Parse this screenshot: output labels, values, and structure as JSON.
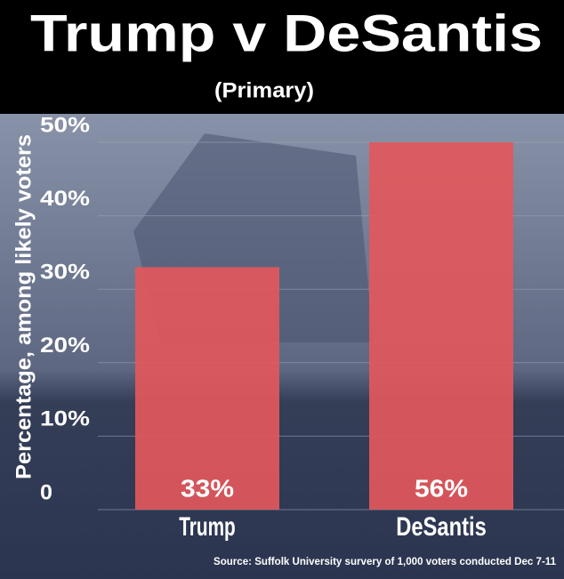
{
  "chart_data": {
    "type": "bar",
    "title": "Trump v DeSantis",
    "subtitle": "(Primary)",
    "y_label": "Percentage, among likely voters",
    "categories": [
      "Trump",
      "DeSantis"
    ],
    "values": [
      33,
      56
    ],
    "value_labels": [
      "33%",
      "56%"
    ],
    "color": "#e2585c",
    "ylim": [
      0,
      50
    ],
    "yticks": [
      0,
      {
        "value": 10,
        "label": "10%"
      },
      {
        "value": 20,
        "label": "20%"
      },
      {
        "value": 30,
        "label": "30%"
      },
      {
        "value": 40,
        "label": "40%"
      },
      {
        "value": 50,
        "label": "50%"
      }
    ],
    "grid": true,
    "source": "Source: Suffolk University survery of 1,000 voters conducted Dec 7-11"
  }
}
